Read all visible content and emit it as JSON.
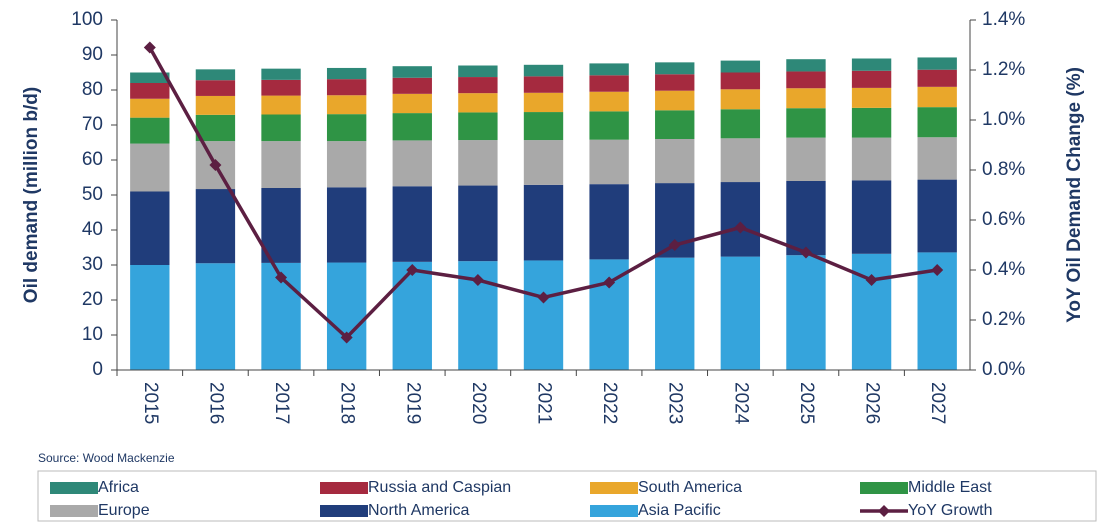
{
  "chart_data": {
    "type": "stacked_bar_line",
    "y_label": "Oil demand (million  b/d)",
    "y2_label": "YoY Oil Demand Change (%)",
    "source": "Source: Wood Mackenzie",
    "categories": [
      "2015",
      "2016",
      "2017",
      "2018",
      "2019",
      "2020",
      "2021",
      "2022",
      "2023",
      "2024",
      "2025",
      "2026",
      "2027"
    ],
    "ylim": [
      0,
      100
    ],
    "yticks": [
      0,
      10,
      20,
      30,
      40,
      50,
      60,
      70,
      80,
      90,
      100
    ],
    "y2lim": [
      0,
      1.4
    ],
    "y2ticks": [
      {
        "value": 0,
        "label": "0.0%"
      },
      {
        "value": 0.2,
        "label": "0.2%"
      },
      {
        "value": 0.4,
        "label": "0.4%"
      },
      {
        "value": 0.6,
        "label": "0.6%"
      },
      {
        "value": 0.8,
        "label": "0.8%"
      },
      {
        "value": 1.0,
        "label": "1.0%"
      },
      {
        "value": 1.2,
        "label": "1.2%"
      },
      {
        "value": 1.4,
        "label": "1.4%"
      }
    ],
    "series": [
      {
        "name": "Africa",
        "color": "#2e8878",
        "type": "bar",
        "values": [
          3.0,
          3.1,
          3.2,
          3.2,
          3.3,
          3.3,
          3.3,
          3.4,
          3.4,
          3.4,
          3.5,
          3.5,
          3.5
        ]
      },
      {
        "name": "Russia and Caspian",
        "color": "#a52a3f",
        "type": "bar",
        "values": [
          4.5,
          4.5,
          4.5,
          4.6,
          4.6,
          4.6,
          4.7,
          4.7,
          4.7,
          4.8,
          4.8,
          4.9,
          4.9
        ]
      },
      {
        "name": "South America",
        "color": "#e9a72b",
        "type": "bar",
        "values": [
          5.4,
          5.4,
          5.4,
          5.4,
          5.5,
          5.5,
          5.5,
          5.6,
          5.6,
          5.7,
          5.7,
          5.7,
          5.8
        ]
      },
      {
        "name": "Middle East",
        "color": "#2f9445",
        "type": "bar",
        "values": [
          7.4,
          7.5,
          7.6,
          7.7,
          7.8,
          7.9,
          8.0,
          8.1,
          8.2,
          8.3,
          8.4,
          8.5,
          8.6
        ]
      },
      {
        "name": "Europe",
        "color": "#a9a9a9",
        "type": "bar",
        "values": [
          13.7,
          13.7,
          13.4,
          13.2,
          13.1,
          13.0,
          12.8,
          12.7,
          12.6,
          12.5,
          12.4,
          12.2,
          12.1
        ]
      },
      {
        "name": "North America",
        "color": "#203d7b",
        "type": "bar",
        "values": [
          21.0,
          21.2,
          21.4,
          21.5,
          21.6,
          21.6,
          21.6,
          21.5,
          21.3,
          21.3,
          21.2,
          21.0,
          20.8
        ]
      },
      {
        "name": "Asia Pacific",
        "color": "#35a4dc",
        "type": "bar",
        "values": [
          30.0,
          30.5,
          30.6,
          30.7,
          30.9,
          31.1,
          31.3,
          31.6,
          32.1,
          32.4,
          32.8,
          33.2,
          33.6
        ]
      },
      {
        "name": "YoY Growth",
        "color": "#5c1f42",
        "type": "line",
        "axis": "y2",
        "values": [
          1.29,
          0.82,
          0.37,
          0.13,
          0.4,
          0.36,
          0.29,
          0.35,
          0.5,
          0.57,
          0.47,
          0.36,
          0.4
        ]
      }
    ]
  }
}
